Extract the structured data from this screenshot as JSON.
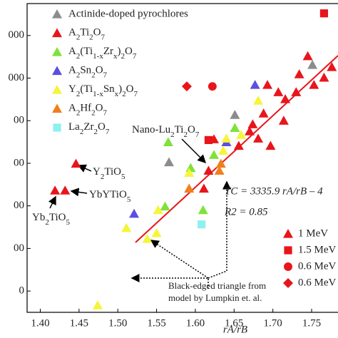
{
  "chart_data": {
    "type": "scatter",
    "xlabel": "rA/rB",
    "xlim": [
      1.383,
      1.784
    ],
    "ylim": [
      -100,
      1350
    ],
    "xticks": [
      {
        "value": 1.4,
        "label": "1.40"
      },
      {
        "value": 1.45,
        "label": "1.45"
      },
      {
        "value": 1.5,
        "label": "1.50"
      },
      {
        "value": 1.55,
        "label": "1.55"
      },
      {
        "value": 1.6,
        "label": "1.60"
      },
      {
        "value": 1.65,
        "label": "1.65"
      },
      {
        "value": 1.7,
        "label": "1.70"
      },
      {
        "value": 1.75,
        "label": "1.75"
      }
    ],
    "yticks": [
      0,
      {
        "value": 200,
        "label": "00"
      },
      {
        "value": 400,
        "label": "00"
      },
      {
        "value": 600,
        "label": "00"
      },
      {
        "value": 800,
        "label": "00"
      },
      {
        "value": 1000,
        "label": "000"
      },
      {
        "value": 1200,
        "label": "000"
      }
    ],
    "series": [
      {
        "name": "Actinide-doped pyrochlores",
        "color": "#8c8c8c",
        "marker": "triangle",
        "x": [
          1.651,
          1.566,
          1.751
        ],
        "values": [
          827,
          605,
          1062
        ]
      },
      {
        "name": "A2Ti2O7",
        "color": "#e8151b",
        "marker": "triangle",
        "x": [
          1.446,
          1.419,
          1.432,
          1.617,
          1.611,
          1.624,
          1.656,
          1.67,
          1.681,
          1.674,
          1.688,
          1.697,
          1.714,
          1.707,
          1.716,
          1.734,
          1.745,
          1.753,
          1.766,
          1.776,
          1.693,
          1.73
        ],
        "values": [
          598,
          472,
          472,
          565,
          481,
          713,
          682,
          750,
          716,
          783,
          834,
          682,
          800,
          934,
          901,
          1018,
          1103,
          968,
          1002,
          1052,
          968,
          934
        ]
      },
      {
        "name": "A2(Ti1-xZrx)2O7",
        "color": "#7ee23a",
        "marker": "triangle",
        "x": [
          1.565,
          1.594,
          1.561,
          1.61,
          1.624,
          1.651
        ],
        "values": [
          699,
          578,
          397,
          380,
          639,
          766
        ]
      },
      {
        "name": "A2Sn2O7",
        "color": "#5a4fe0",
        "marker": "triangle",
        "x": [
          1.521,
          1.64,
          1.677
        ],
        "values": [
          363,
          699,
          968
        ]
      },
      {
        "name": "Y2(Ti1-xSnx)2O7",
        "color": "#f5f53a",
        "marker": "triangle",
        "x": [
          1.474,
          1.511,
          1.538,
          1.55,
          1.552,
          1.592,
          1.636,
          1.64,
          1.659,
          1.681
        ],
        "values": [
          -67,
          296,
          245,
          272,
          380,
          555,
          659,
          716,
          733,
          894
        ]
      },
      {
        "name": "A2Hf2O7",
        "color": "#f07f1a",
        "marker": "triangle",
        "x": [
          1.592,
          1.631,
          1.633
        ],
        "values": [
          481,
          565,
          598
        ]
      },
      {
        "name": "La2Zr2O7",
        "color": "#8ef0f0",
        "marker": "square",
        "x": [
          1.608
        ],
        "values": [
          313
        ]
      },
      {
        "color": "#e8151b",
        "marker": "square",
        "x": [
          1.766,
          1.617
        ],
        "values": [
          1304,
          709
        ]
      },
      {
        "color": "#e8151b",
        "marker": "circle",
        "x": [
          1.622
        ],
        "values": [
          961
        ]
      },
      {
        "color": "#e8151b",
        "marker": "diamond",
        "x": [
          1.589
        ],
        "values": [
          961
        ]
      }
    ],
    "ion_legend": [
      {
        "label": "1 MeV",
        "marker": "triangle",
        "color": "#e8151b"
      },
      {
        "label": "1.5 MeV",
        "marker": "square",
        "color": "#e8151b"
      },
      {
        "label": "0.6 MeV",
        "marker": "circle",
        "color": "#e8151b"
      },
      {
        "label": "0.6 MeV",
        "marker": "diamond",
        "color": "#e8151b"
      }
    ],
    "annotations": {
      "nano": "Nano-Lu2Ti2O7",
      "y2tio5": "Y2TiO5",
      "ybytio5": "YbYTiO5",
      "yb2tio5": "Yb2TiO5",
      "equation": "TC = 3335.9 rA/rB – 4",
      "r2": "R2 = 0.85",
      "note1": "Black-edged triangle from",
      "note2": "model by Lumpkin et. al."
    }
  }
}
